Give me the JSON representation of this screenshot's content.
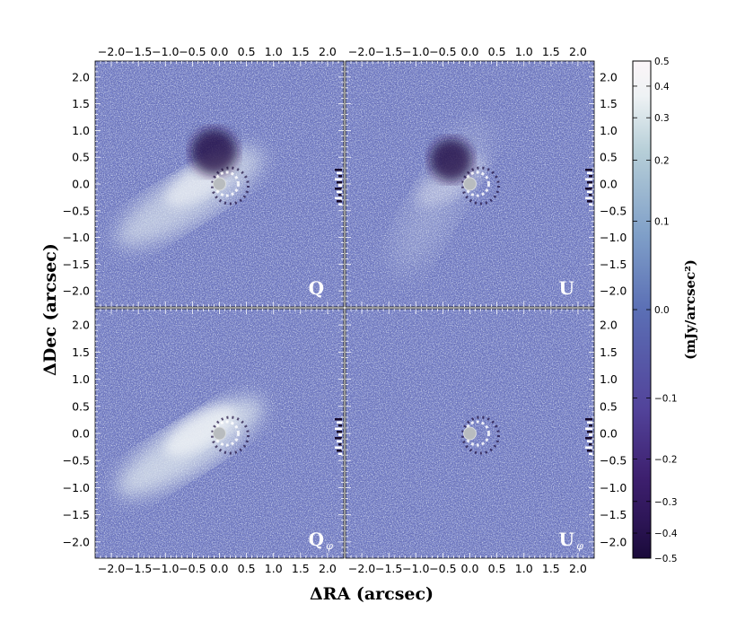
{
  "chart_data": {
    "type": "heatmap",
    "layout": "2x2 panels",
    "xlabel": "ΔRA (arcsec)",
    "ylabel": "ΔDec (arcsec)",
    "xlim": [
      -2.3,
      2.3
    ],
    "ylim": [
      -2.3,
      2.3
    ],
    "x_ticks": [
      -2.0,
      -1.5,
      -1.0,
      -0.5,
      0.0,
      0.5,
      1.0,
      1.5,
      2.0
    ],
    "x_tick_labels": [
      "−2.0",
      "−1.5",
      "−1.0",
      "−0.5",
      "0.0",
      "0.5",
      "1.0",
      "1.5",
      "2.0"
    ],
    "y_ticks": [
      2.0,
      1.5,
      1.0,
      0.5,
      0.0,
      -0.5,
      -1.0,
      -1.5,
      -2.0
    ],
    "y_tick_labels": [
      "2.0",
      "1.5",
      "1.0",
      "0.5",
      "0.0",
      "−0.5",
      "−1.0",
      "−1.5",
      "−2.0"
    ],
    "panels": [
      {
        "id": "Q",
        "label": "Q",
        "subscript": ""
      },
      {
        "id": "U",
        "label": "U",
        "subscript": ""
      },
      {
        "id": "Qphi",
        "label": "Q",
        "subscript": "φ"
      },
      {
        "id": "Uphi",
        "label": "U",
        "subscript": "φ"
      }
    ],
    "colorbar": {
      "title": "(mJy/arcsec²)",
      "range": [
        -0.5,
        0.5
      ],
      "scale": "symmetric nonlinear (asinh-like)",
      "ticks": [
        {
          "value": 0.5,
          "label": "0.5"
        },
        {
          "value": 0.4,
          "label": "0.4"
        },
        {
          "value": 0.3,
          "label": "0.3"
        },
        {
          "value": 0.2,
          "label": "0.2"
        },
        {
          "value": 0.1,
          "label": "0.1"
        },
        {
          "value": 0.0,
          "label": "0.0"
        },
        {
          "value": -0.1,
          "label": "−0.1"
        },
        {
          "value": -0.2,
          "label": "−0.2"
        },
        {
          "value": -0.3,
          "label": "−0.3"
        },
        {
          "value": -0.4,
          "label": "−0.4"
        },
        {
          "value": -0.5,
          "label": "−0.5"
        }
      ],
      "colors": [
        "#1a0a3a",
        "#3d1f6e",
        "#52439a",
        "#5b6fb5",
        "#7f9fc8",
        "#b7cfd8",
        "#eef2f4",
        "#fbf5f8"
      ]
    },
    "grid": false
  }
}
